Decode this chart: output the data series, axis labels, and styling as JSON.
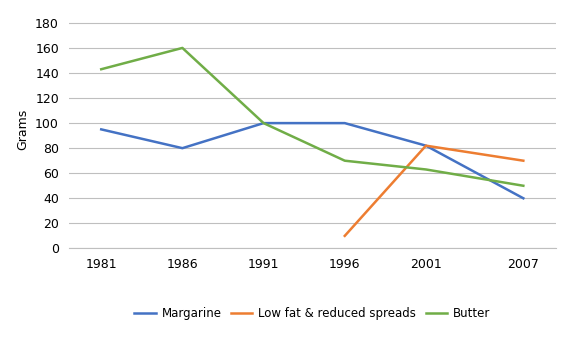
{
  "years": [
    1981,
    1986,
    1991,
    1996,
    2001,
    2007
  ],
  "margarine": [
    95,
    80,
    100,
    100,
    82,
    40
  ],
  "low_fat": [
    null,
    null,
    null,
    10,
    82,
    70
  ],
  "butter": [
    143,
    160,
    100,
    70,
    63,
    50
  ],
  "margarine_color": "#4472C4",
  "low_fat_color": "#ED7D31",
  "butter_color": "#70AD47",
  "ylabel": "Grams",
  "ylim": [
    0,
    190
  ],
  "yticks": [
    0,
    20,
    40,
    60,
    80,
    100,
    120,
    140,
    160,
    180
  ],
  "legend_labels": [
    "Margarine",
    "Low fat & reduced spreads",
    "Butter"
  ],
  "background_color": "#FFFFFF",
  "grid_color": "#BFBFBF",
  "line_width": 1.8,
  "xlim": [
    1979,
    2009
  ]
}
